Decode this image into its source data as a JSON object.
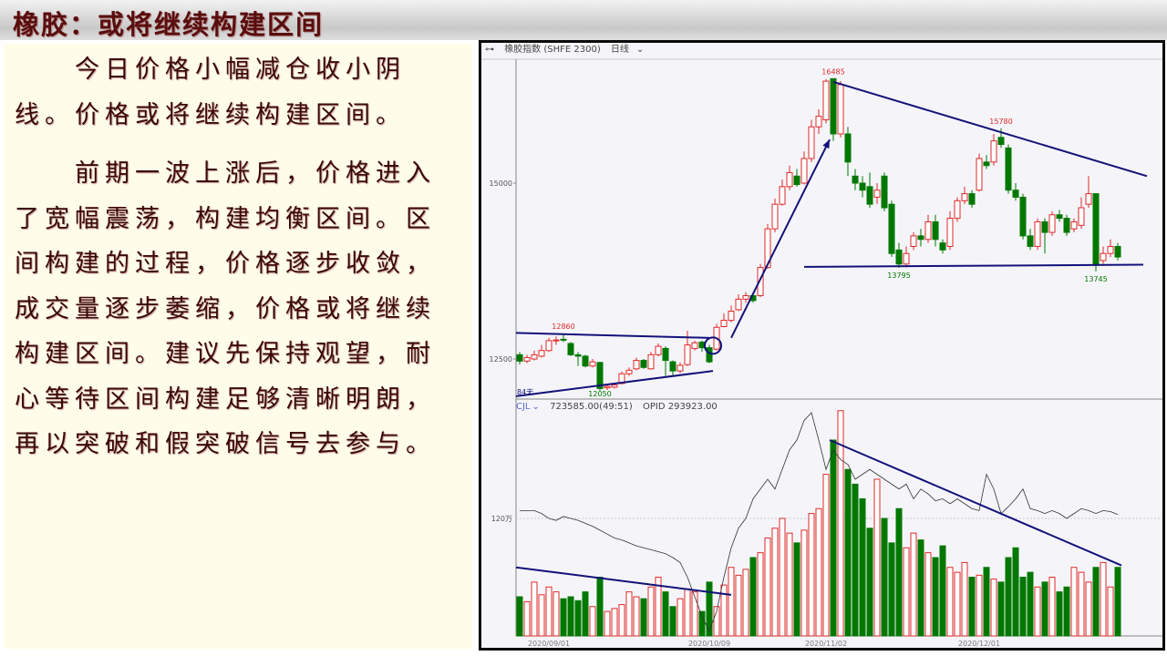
{
  "slide": {
    "title": "橡胶：或将继续构建区间",
    "paragraphs": [
      "今日价格小幅减仓收小阴线。价格或将继续构建区间。",
      "前期一波上涨后，价格进入了宽幅震荡，构建均衡区间。区间构建的过程，价格逐步收敛，成交量逐步萎缩，价格或将继续构建区间。建议先保持观望，耐心等待区间构建足够清晰明朗，再以突破和假突破信号去参与。"
    ]
  },
  "chart_header": {
    "icon": "glasses-icon",
    "instrument": "橡胶指数 (SHFE 2300)",
    "period": "日线"
  },
  "volume_header": {
    "indicator": "CJL",
    "value": "723585.00(49:51)",
    "oi": "OPID 293923.00"
  },
  "chart_data": {
    "type": "candlestick",
    "colors": {
      "up": "#e02828",
      "down": "#007800",
      "trendline": "#12127a",
      "oi_line": "#333333"
    },
    "price_ticks": [
      "15000",
      "12500"
    ],
    "volume_ticks": [
      "120万"
    ],
    "x_ticks": [
      {
        "bar": 4,
        "label": "2020/09/01"
      },
      {
        "bar": 26,
        "label": "2020/10/09"
      },
      {
        "bar": 42,
        "label": "2020/11/02"
      },
      {
        "bar": 63,
        "label": "2020/12/01"
      }
    ],
    "ohlc": [
      [
        12560,
        12470,
        12600,
        12420
      ],
      [
        12470,
        12520,
        12560,
        12440
      ],
      [
        12500,
        12560,
        12620,
        12480
      ],
      [
        12540,
        12620,
        12700,
        12520
      ],
      [
        12620,
        12760,
        12800,
        12600
      ],
      [
        12760,
        12770,
        12820,
        12700
      ],
      [
        12780,
        12770,
        12860,
        12740
      ],
      [
        12720,
        12560,
        12740,
        12540
      ],
      [
        12560,
        12540,
        12600,
        12400
      ],
      [
        12540,
        12400,
        12560,
        12380
      ],
      [
        12400,
        12460,
        12500,
        12380
      ],
      [
        12450,
        12080,
        12460,
        12050
      ],
      [
        12090,
        12110,
        12150,
        12060
      ],
      [
        12100,
        12130,
        12160,
        12080
      ],
      [
        12150,
        12290,
        12320,
        12140
      ],
      [
        12290,
        12340,
        12380,
        12260
      ],
      [
        12360,
        12480,
        12520,
        12340
      ],
      [
        12480,
        12380,
        12500,
        12360
      ],
      [
        12360,
        12560,
        12600,
        12350
      ],
      [
        12560,
        12680,
        12720,
        12540
      ],
      [
        12650,
        12480,
        12680,
        12260
      ],
      [
        12460,
        12330,
        12480,
        12260
      ],
      [
        12330,
        12410,
        12450,
        12300
      ],
      [
        12420,
        12700,
        12900,
        12400
      ],
      [
        12650,
        12730,
        12760,
        12620
      ],
      [
        12740,
        12660,
        12760,
        12600
      ],
      [
        12660,
        12460,
        12700,
        12440
      ],
      [
        12640,
        12950,
        13000,
        12620
      ],
      [
        12960,
        13050,
        13150,
        12950
      ],
      [
        13050,
        13180,
        13260,
        13020
      ],
      [
        13200,
        13350,
        13420,
        13180
      ],
      [
        13350,
        13400,
        13450,
        13300
      ],
      [
        13400,
        13330,
        13420,
        13300
      ],
      [
        13400,
        13800,
        13850,
        13380
      ],
      [
        13800,
        14350,
        14420,
        13780
      ],
      [
        14350,
        14700,
        14780,
        14300
      ],
      [
        14700,
        14950,
        15050,
        14680
      ],
      [
        14950,
        15150,
        15250,
        14900
      ],
      [
        15100,
        14980,
        15200,
        14950
      ],
      [
        15000,
        15350,
        15450,
        14980
      ],
      [
        15350,
        15800,
        15900,
        15300
      ],
      [
        15800,
        15950,
        16050,
        15700
      ],
      [
        15900,
        16450,
        16480,
        15850
      ],
      [
        16485,
        15700,
        16485,
        15600
      ],
      [
        15700,
        16400,
        16450,
        15650
      ],
      [
        15700,
        15300,
        15800,
        15100
      ],
      [
        15100,
        15000,
        15200,
        14900
      ],
      [
        15000,
        14900,
        15100,
        14800
      ],
      [
        14950,
        14700,
        15150,
        14650
      ],
      [
        14800,
        14900,
        15000,
        14700
      ],
      [
        15100,
        14650,
        15150,
        14600
      ],
      [
        14700,
        14000,
        14750,
        13950
      ],
      [
        14050,
        13850,
        14150,
        13795
      ],
      [
        13850,
        14000,
        14100,
        13800
      ],
      [
        14100,
        14250,
        14300,
        14050
      ],
      [
        14250,
        14200,
        14350,
        14100
      ],
      [
        14200,
        14450,
        14550,
        14150
      ],
      [
        14450,
        14200,
        14550,
        14100
      ],
      [
        14150,
        14050,
        14200,
        14000
      ],
      [
        14100,
        14500,
        14600,
        14050
      ],
      [
        14500,
        14750,
        14800,
        14450
      ],
      [
        14750,
        14850,
        14950,
        14700
      ],
      [
        14850,
        14700,
        14900,
        14650
      ],
      [
        14900,
        15350,
        15420,
        14880
      ],
      [
        15300,
        15250,
        15400,
        15200
      ],
      [
        15300,
        15600,
        15700,
        15250
      ],
      [
        15650,
        15550,
        15780,
        15500
      ],
      [
        15500,
        14900,
        15550,
        14850
      ],
      [
        14900,
        14800,
        15000,
        14750
      ],
      [
        14800,
        14250,
        14850,
        14200
      ],
      [
        14250,
        14100,
        14350,
        14050
      ],
      [
        14100,
        14450,
        14500,
        14050
      ],
      [
        14450,
        14300,
        14500,
        14000
      ],
      [
        14300,
        14550,
        14600,
        14250
      ],
      [
        14550,
        14500,
        14620,
        14450
      ],
      [
        14500,
        14300,
        14550,
        14250
      ],
      [
        14350,
        14450,
        14500,
        14300
      ],
      [
        14400,
        14650,
        14800,
        14350
      ],
      [
        14700,
        14850,
        15100,
        14650
      ],
      [
        14850,
        13850,
        14850,
        13745
      ],
      [
        13900,
        14000,
        14100,
        13850
      ],
      [
        14000,
        14100,
        14200,
        13950
      ],
      [
        14100,
        13950,
        14150,
        13900
      ]
    ],
    "volume": [
      40,
      35,
      55,
      42,
      50,
      45,
      38,
      40,
      36,
      45,
      30,
      60,
      25,
      28,
      32,
      45,
      40,
      38,
      50,
      60,
      45,
      30,
      38,
      48,
      45,
      25,
      55,
      30,
      52,
      70,
      62,
      68,
      80,
      85,
      100,
      110,
      120,
      105,
      95,
      108,
      125,
      130,
      165,
      200,
      230,
      170,
      155,
      140,
      110,
      160,
      120,
      95,
      130,
      90,
      105,
      98,
      85,
      80,
      92,
      70,
      65,
      75,
      60,
      62,
      70,
      58,
      55,
      80,
      90,
      60,
      65,
      50,
      55,
      60,
      45,
      50,
      70,
      65,
      55,
      70,
      75,
      50,
      70
    ],
    "open_interest": [
      128,
      128,
      128,
      125,
      120,
      118,
      122,
      120,
      118,
      115,
      112,
      108,
      104,
      100,
      98,
      95,
      92,
      90,
      88,
      86,
      84,
      80,
      75,
      60,
      40,
      20,
      5,
      25,
      60,
      90,
      110,
      120,
      140,
      150,
      160,
      150,
      170,
      190,
      200,
      220,
      228,
      200,
      170,
      190,
      180,
      175,
      160,
      165,
      170,
      165,
      160,
      155,
      150,
      155,
      140,
      150,
      145,
      138,
      140,
      135,
      140,
      135,
      130,
      128,
      165,
      150,
      125,
      132,
      140,
      150,
      130,
      128,
      125,
      128,
      125,
      120,
      125,
      130,
      128,
      125,
      128,
      127,
      124
    ],
    "price_labels": [
      {
        "bar": 43,
        "price": 16485,
        "text": "16485",
        "color": "#e02828",
        "pos": "above"
      },
      {
        "bar": 66,
        "price": 15780,
        "text": "15780",
        "color": "#e02828",
        "pos": "above"
      },
      {
        "bar": 6,
        "price": 12860,
        "text": "12860",
        "color": "#e02828",
        "pos": "above"
      },
      {
        "bar": 52,
        "price": 13795,
        "text": "13795",
        "color": "#007800",
        "pos": "below"
      },
      {
        "bar": 79,
        "price": 13745,
        "text": "13745",
        "color": "#007800",
        "pos": "below"
      },
      {
        "bar": 11,
        "price": 12050,
        "text": "12050",
        "color": "#007800",
        "pos": "below"
      }
    ],
    "range_label": "84天",
    "price_trendlines": [
      {
        "from": [
          -0.5,
          12870
        ],
        "to": [
          26,
          12800
        ]
      },
      {
        "from": [
          -0.5,
          11970
        ],
        "to": [
          26.5,
          12330
        ]
      },
      {
        "from": [
          43,
          16440
        ],
        "to": [
          86,
          15100
        ]
      },
      {
        "from": [
          39,
          13810
        ],
        "to": [
          85.5,
          13840
        ]
      }
    ],
    "arrow": {
      "from": [
        29,
        12800
      ],
      "to": [
        42.5,
        15620
      ]
    },
    "circle": {
      "bar": 26.5,
      "price": 12690
    },
    "volume_trendlines": [
      {
        "from": [
          -0.5,
          70
        ],
        "to": [
          29,
          42
        ]
      },
      {
        "from": [
          42.5,
          200
        ],
        "to": [
          82.5,
          72
        ]
      }
    ]
  }
}
